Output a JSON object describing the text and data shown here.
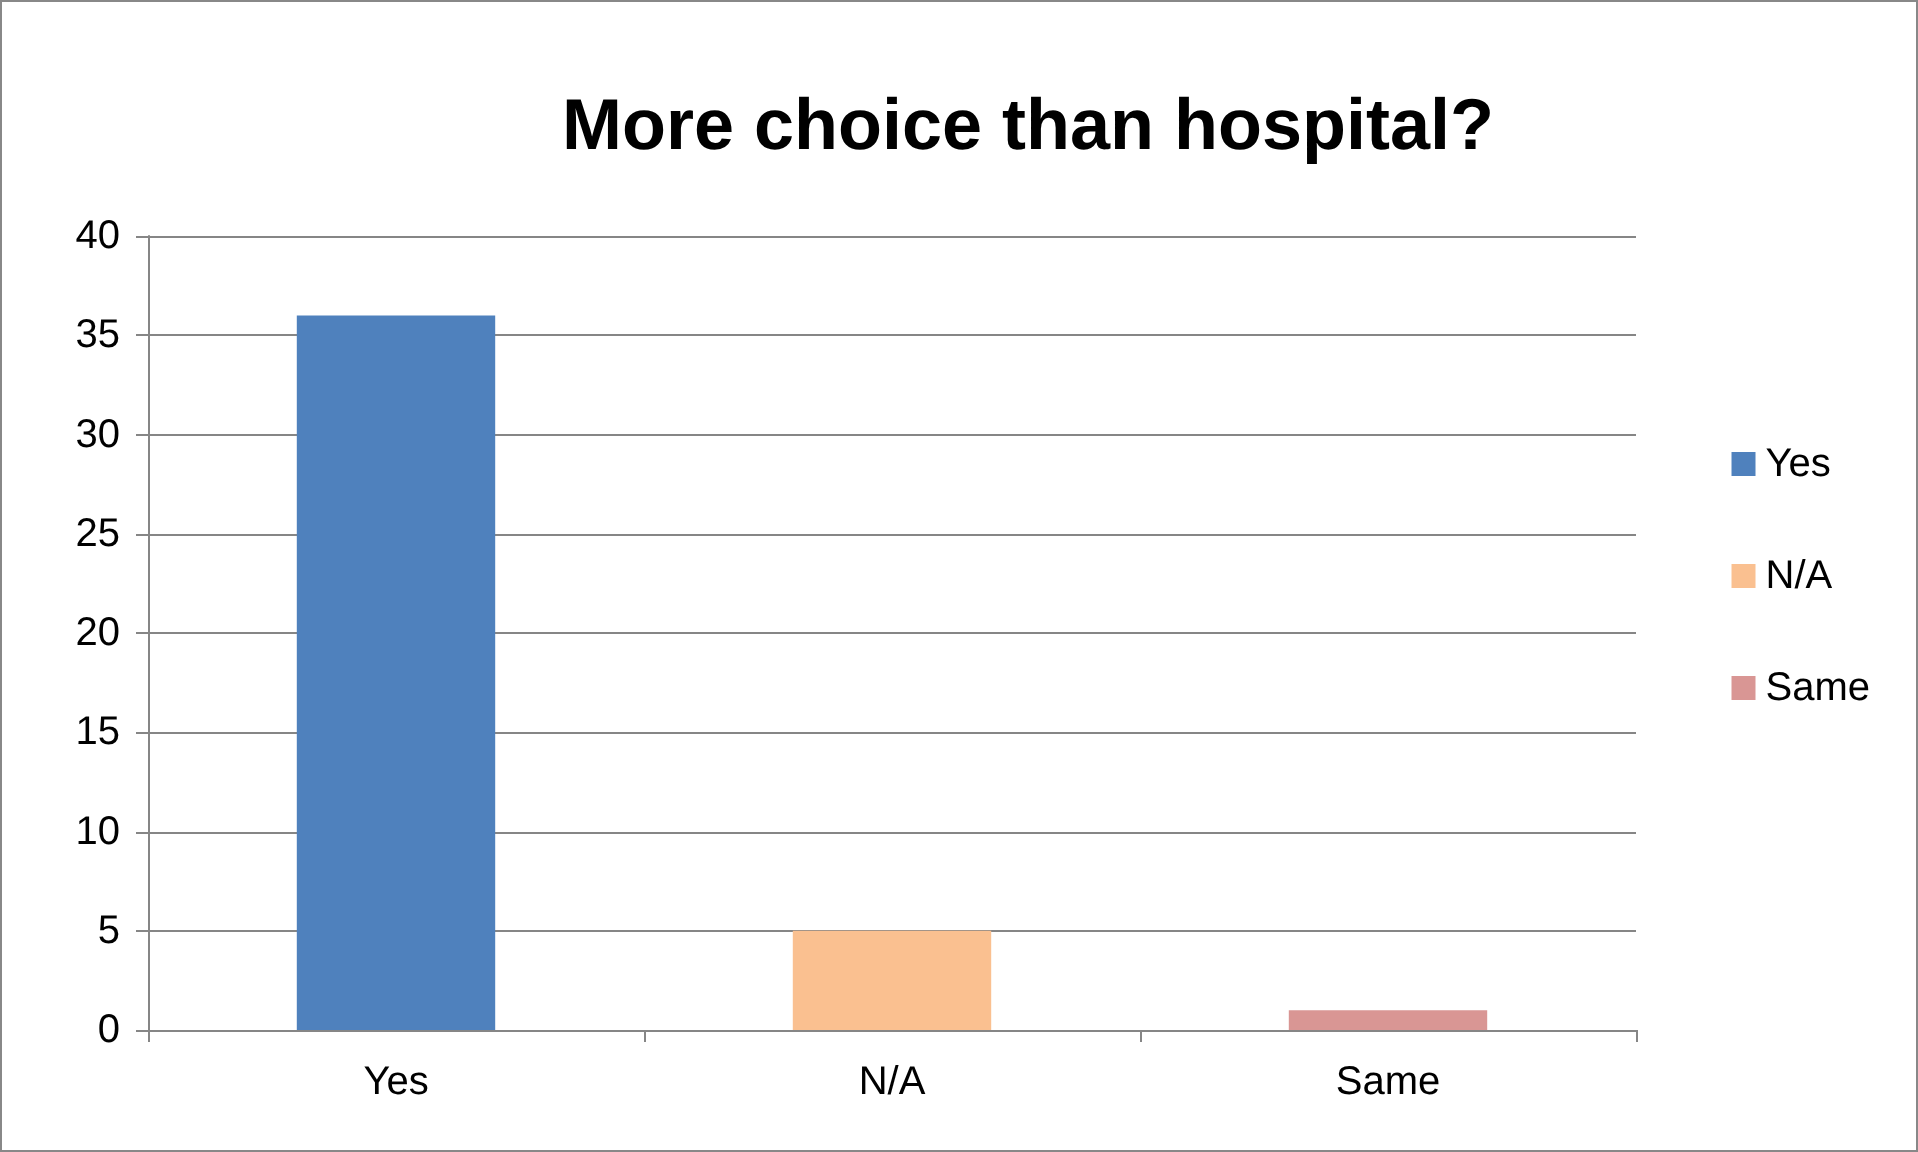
{
  "chart_data": {
    "type": "bar",
    "title": "More choice than hospital?",
    "categories": [
      "Yes",
      "N/A",
      "Same"
    ],
    "series": [
      {
        "name": "Yes",
        "color": "#4f81bd",
        "values": [
          36,
          null,
          null
        ]
      },
      {
        "name": "N/A",
        "color": "#fac090",
        "values": [
          null,
          5,
          null
        ]
      },
      {
        "name": "Same",
        "color": "#d99694",
        "values": [
          null,
          null,
          1
        ]
      }
    ],
    "ylim": [
      0,
      40
    ],
    "yticks": [
      0,
      5,
      10,
      15,
      20,
      25,
      30,
      35,
      40
    ],
    "grid": "y",
    "legend": "right"
  }
}
